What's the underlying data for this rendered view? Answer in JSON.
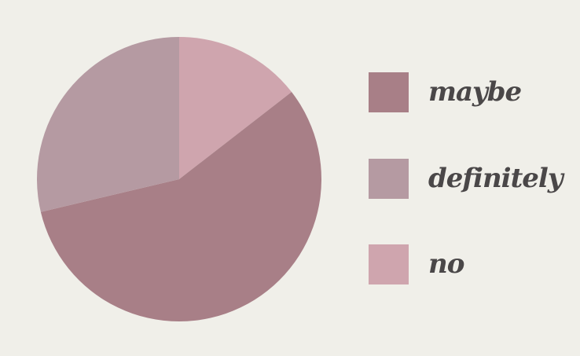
{
  "chart_data": {
    "type": "pie",
    "title": "",
    "slices": [
      {
        "label": "maybe",
        "value": 56.8,
        "color": "#a87f87"
      },
      {
        "label": "definitely",
        "value": 28.7,
        "color": "#b59aa2"
      },
      {
        "label": "no",
        "value": 14.5,
        "color": "#cfa5ae"
      }
    ],
    "start_angle_deg": 0,
    "slice_order": [
      "no",
      "maybe",
      "definitely"
    ],
    "direction": "clockwise",
    "legend_position": "right"
  },
  "background": "#f0efe9",
  "text_color": "#4a4748"
}
